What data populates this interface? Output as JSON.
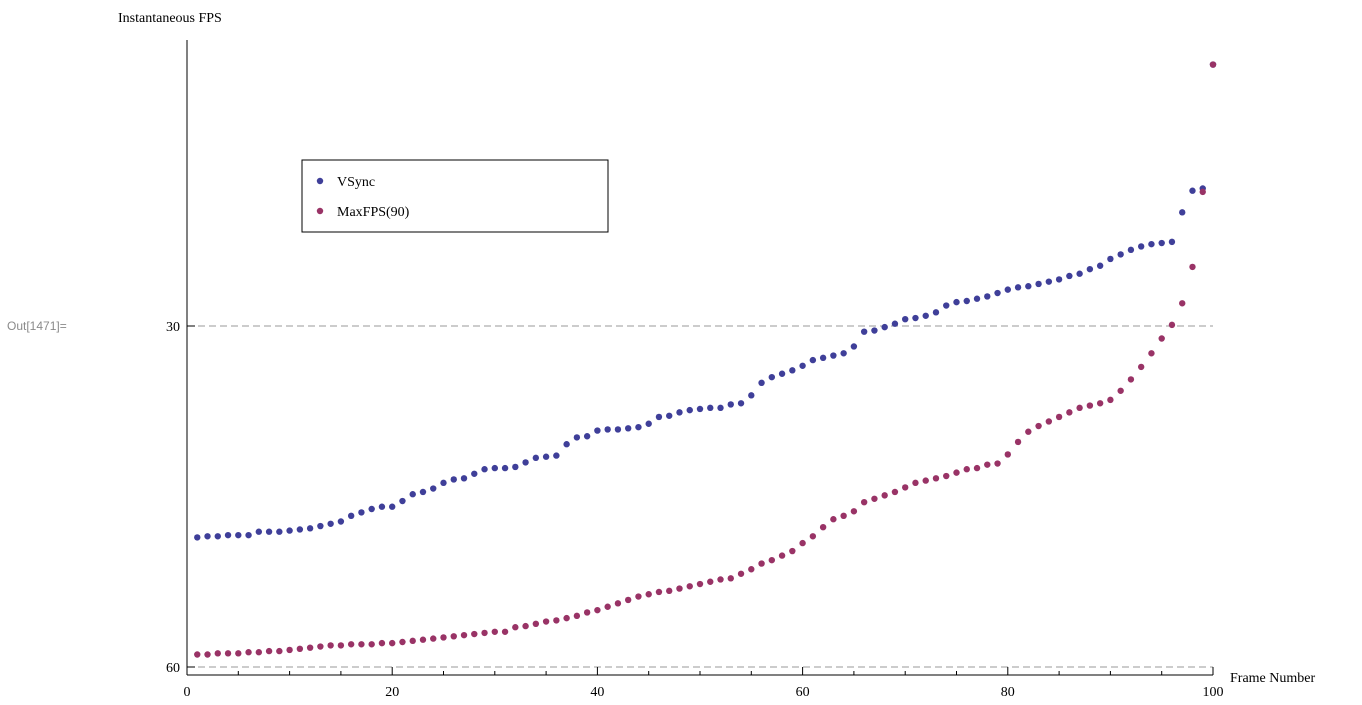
{
  "out_label": "Out[1471]=",
  "chart_data": {
    "type": "scatter",
    "title": "",
    "xlabel": "Frame Number",
    "ylabel": "Instantaneous FPS",
    "xlim": [
      0,
      100
    ],
    "ylim": [
      60,
      5
    ],
    "y_axis_reversed": true,
    "grid": "dashed horizontal at 30 and 60",
    "gridlines_y": [
      30,
      60
    ],
    "x_ticks": [
      0,
      20,
      40,
      60,
      80,
      100
    ],
    "x_tick_labels": [
      "0",
      "20",
      "40",
      "60",
      "80",
      "100"
    ],
    "y_ticks": [
      30,
      60
    ],
    "y_tick_labels": [
      "30",
      "60"
    ],
    "legend_position": "upper-left inside",
    "series": [
      {
        "name": "VSync",
        "color": "#3f3f99",
        "x": [
          1,
          2,
          3,
          4,
          5,
          6,
          7,
          8,
          9,
          10,
          11,
          12,
          13,
          14,
          15,
          16,
          17,
          18,
          19,
          20,
          21,
          22,
          23,
          24,
          25,
          26,
          27,
          28,
          29,
          30,
          31,
          32,
          33,
          34,
          35,
          36,
          37,
          38,
          39,
          40,
          41,
          42,
          43,
          44,
          45,
          46,
          47,
          48,
          49,
          50,
          51,
          52,
          53,
          54,
          55,
          56,
          57,
          58,
          59,
          60,
          61,
          62,
          63,
          64,
          65,
          66,
          67,
          68,
          69,
          70,
          71,
          72,
          73,
          74,
          75,
          76,
          77,
          78,
          79,
          80,
          81,
          82,
          83,
          84,
          85,
          86,
          87,
          88,
          89,
          90,
          91,
          92,
          93,
          94,
          95,
          96,
          97,
          98,
          99,
          100
        ],
        "y": [
          48.6,
          48.5,
          48.5,
          48.4,
          48.4,
          48.4,
          48.1,
          48.1,
          48.1,
          48.0,
          47.9,
          47.8,
          47.6,
          47.4,
          47.2,
          46.7,
          46.4,
          46.1,
          45.9,
          45.9,
          45.4,
          44.8,
          44.6,
          44.3,
          43.8,
          43.5,
          43.4,
          43.0,
          42.6,
          42.5,
          42.5,
          42.4,
          42.0,
          41.6,
          41.5,
          41.4,
          40.4,
          39.8,
          39.7,
          39.2,
          39.1,
          39.1,
          39.0,
          38.9,
          38.6,
          38.0,
          37.9,
          37.6,
          37.4,
          37.3,
          37.2,
          37.2,
          36.9,
          36.8,
          36.1,
          35.0,
          34.5,
          34.2,
          33.9,
          33.5,
          33.0,
          32.8,
          32.6,
          32.4,
          31.8,
          30.5,
          30.4,
          30.1,
          29.8,
          29.4,
          29.3,
          29.1,
          28.8,
          28.2,
          27.9,
          27.8,
          27.6,
          27.4,
          27.1,
          26.8,
          26.6,
          26.5,
          26.3,
          26.1,
          25.9,
          25.6,
          25.4,
          25.0,
          24.7,
          24.1,
          23.7,
          23.3,
          23.0,
          22.8,
          22.7,
          22.6,
          20.0,
          18.1,
          17.9,
          7.0
        ]
      },
      {
        "name": "MaxFPS(90)",
        "color": "#993366",
        "x": [
          1,
          2,
          3,
          4,
          5,
          6,
          7,
          8,
          9,
          10,
          11,
          12,
          13,
          14,
          15,
          16,
          17,
          18,
          19,
          20,
          21,
          22,
          23,
          24,
          25,
          26,
          27,
          28,
          29,
          30,
          31,
          32,
          33,
          34,
          35,
          36,
          37,
          38,
          39,
          40,
          41,
          42,
          43,
          44,
          45,
          46,
          47,
          48,
          49,
          50,
          51,
          52,
          53,
          54,
          55,
          56,
          57,
          58,
          59,
          60,
          61,
          62,
          63,
          64,
          65,
          66,
          67,
          68,
          69,
          70,
          71,
          72,
          73,
          74,
          75,
          76,
          77,
          78,
          79,
          80,
          81,
          82,
          83,
          84,
          85,
          86,
          87,
          88,
          89,
          90,
          91,
          92,
          93,
          94,
          95,
          96,
          97,
          98,
          99,
          100
        ],
        "y": [
          58.9,
          58.9,
          58.8,
          58.8,
          58.8,
          58.7,
          58.7,
          58.6,
          58.6,
          58.5,
          58.4,
          58.3,
          58.2,
          58.1,
          58.1,
          58.0,
          58.0,
          58.0,
          57.9,
          57.9,
          57.8,
          57.7,
          57.6,
          57.5,
          57.4,
          57.3,
          57.2,
          57.1,
          57.0,
          56.9,
          56.9,
          56.5,
          56.4,
          56.2,
          56.0,
          55.9,
          55.7,
          55.5,
          55.2,
          55.0,
          54.7,
          54.4,
          54.1,
          53.8,
          53.6,
          53.4,
          53.3,
          53.1,
          52.9,
          52.7,
          52.5,
          52.3,
          52.2,
          51.8,
          51.4,
          50.9,
          50.6,
          50.2,
          49.8,
          49.1,
          48.5,
          47.7,
          47.0,
          46.7,
          46.3,
          45.5,
          45.2,
          44.9,
          44.6,
          44.2,
          43.8,
          43.6,
          43.4,
          43.2,
          42.9,
          42.6,
          42.5,
          42.2,
          42.1,
          41.3,
          40.2,
          39.3,
          38.8,
          38.4,
          38.0,
          37.6,
          37.2,
          37.0,
          36.8,
          36.5,
          35.7,
          34.7,
          33.6,
          32.4,
          31.1,
          29.9,
          28.0,
          24.8,
          18.2,
          7.0
        ]
      }
    ]
  }
}
